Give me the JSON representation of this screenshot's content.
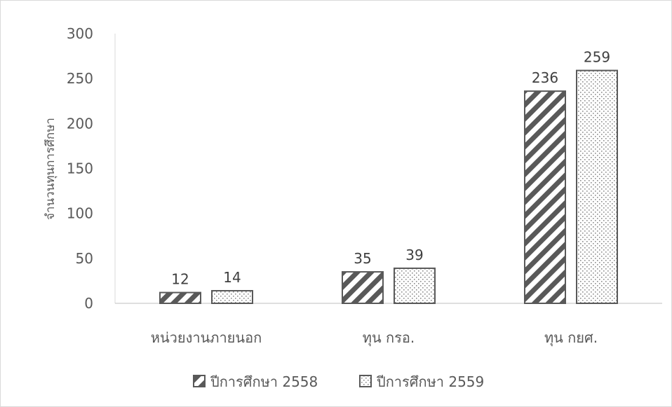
{
  "chart_data": {
    "type": "bar",
    "title": "",
    "xlabel": "",
    "ylabel": "จำนวนทุนการศึกษา",
    "ylim": [
      0,
      300
    ],
    "yticks": [
      0,
      50,
      100,
      150,
      200,
      250,
      300
    ],
    "grid": false,
    "legend_position": "bottom",
    "categories": [
      "หน่วยงานภายนอก",
      "ทุน กรอ.",
      "ทุน กยศ."
    ],
    "series": [
      {
        "name": "ปีการศึกษา 2558",
        "values": [
          12,
          35,
          236
        ],
        "pattern": "diagonal-stripes",
        "color": "#595959"
      },
      {
        "name": "ปีการศึกษา 2559",
        "values": [
          14,
          39,
          259
        ],
        "pattern": "dots",
        "color": "#595959"
      }
    ]
  }
}
